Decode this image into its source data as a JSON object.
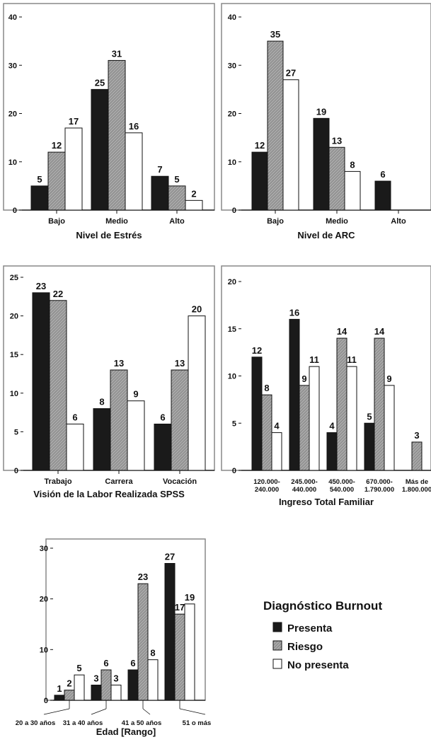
{
  "colors": {
    "presenta": "#1a1a1a",
    "riesgo": "#9a9a9a",
    "no_presenta": "#ffffff",
    "frame": "#888888",
    "axis": "#111111"
  },
  "legend": {
    "title": "Diagnóstico Burnout",
    "items": [
      {
        "label": "Presenta",
        "key": "presenta"
      },
      {
        "label": "Riesgo",
        "key": "riesgo"
      },
      {
        "label": "No presenta",
        "key": "no_presenta"
      }
    ]
  },
  "chart_data": [
    {
      "type": "bar",
      "xlabel": "Nivel de Estrés",
      "categories": [
        "Bajo",
        "Medio",
        "Alto"
      ],
      "series": [
        {
          "name": "Presenta",
          "values": [
            5,
            25,
            7
          ]
        },
        {
          "name": "Riesgo",
          "values": [
            12,
            31,
            5
          ]
        },
        {
          "name": "No presenta",
          "values": [
            17,
            16,
            2
          ]
        }
      ],
      "ylim": [
        0,
        40
      ],
      "yticks": [
        0,
        10,
        20,
        30,
        40
      ]
    },
    {
      "type": "bar",
      "xlabel": "Nivel de ARC",
      "categories": [
        "Bajo",
        "Medio",
        "Alto"
      ],
      "series": [
        {
          "name": "Presenta",
          "values": [
            12,
            19,
            6
          ]
        },
        {
          "name": "Riesgo",
          "values": [
            35,
            13,
            null
          ]
        },
        {
          "name": "No presenta",
          "values": [
            27,
            8,
            null
          ]
        }
      ],
      "ylim": [
        0,
        40
      ],
      "yticks": [
        0,
        10,
        20,
        30,
        40
      ]
    },
    {
      "type": "bar",
      "xlabel": "Visión de la Labor Realizada SPSS",
      "categories": [
        "Trabajo",
        "Carrera",
        "Vocación"
      ],
      "series": [
        {
          "name": "Presenta",
          "values": [
            23,
            8,
            6
          ]
        },
        {
          "name": "Riesgo",
          "values": [
            22,
            13,
            13
          ]
        },
        {
          "name": "No presenta",
          "values": [
            6,
            9,
            20
          ]
        }
      ],
      "ylim": [
        0,
        25
      ],
      "yticks": [
        0,
        5,
        10,
        15,
        20,
        25
      ]
    },
    {
      "type": "bar",
      "xlabel": "Ingreso Total Familiar",
      "categories": [
        [
          "120.000-",
          "240.000"
        ],
        [
          "245.000-",
          "440.000"
        ],
        [
          "450.000-",
          "540.000"
        ],
        [
          "670.000-",
          "1.790.000"
        ],
        [
          "Más de",
          "1.800.000"
        ]
      ],
      "series": [
        {
          "name": "Presenta",
          "values": [
            12,
            16,
            4,
            5,
            null
          ]
        },
        {
          "name": "Riesgo",
          "values": [
            8,
            9,
            14,
            14,
            3
          ]
        },
        {
          "name": "No presenta",
          "values": [
            4,
            11,
            11,
            9,
            null
          ]
        }
      ],
      "ylim": [
        0,
        20
      ],
      "yticks": [
        0,
        5,
        10,
        15,
        20
      ]
    },
    {
      "type": "bar",
      "xlabel": "Edad [Rango]",
      "categories": [
        "20 a 30 años",
        "31 a 40 años",
        "41 a 50 años",
        "51 o más"
      ],
      "series": [
        {
          "name": "Presenta",
          "values": [
            1,
            3,
            6,
            27
          ]
        },
        {
          "name": "Riesgo",
          "values": [
            2,
            6,
            23,
            17
          ]
        },
        {
          "name": "No presenta",
          "values": [
            5,
            3,
            8,
            19
          ]
        }
      ],
      "ylim": [
        0,
        30
      ],
      "yticks": [
        0,
        10,
        20,
        30
      ]
    }
  ]
}
